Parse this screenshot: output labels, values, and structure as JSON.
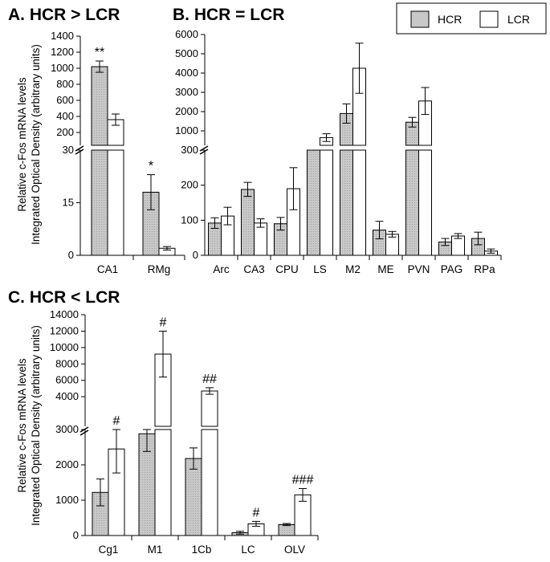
{
  "legend": {
    "hcr": "HCR",
    "lcr": "LCR"
  },
  "colors": {
    "hcr_fill": "#c8c8c8",
    "lcr_fill": "#ffffff",
    "axis": "#000000"
  },
  "chart_data": [
    {
      "panel": "A",
      "type": "bar",
      "title": "A. HCR > LCR",
      "ylabel": [
        "Relative c-Fos mRNA levels",
        "Integrated Optical Density (arbitrary units)"
      ],
      "categories": [
        "CA1",
        "RMg"
      ],
      "series": [
        {
          "name": "HCR",
          "values": [
            1020,
            18
          ],
          "errors": [
            70,
            5
          ]
        },
        {
          "name": "LCR",
          "values": [
            360,
            2
          ],
          "errors": [
            70,
            0.5
          ]
        }
      ],
      "significance": [
        {
          "category": "CA1",
          "label": "**"
        },
        {
          "category": "RMg",
          "label": "*"
        }
      ],
      "broken_axis": {
        "lower": {
          "range": [
            0,
            30
          ],
          "ticks": [
            "0",
            "15",
            "30"
          ]
        },
        "upper": {
          "range": [
            0,
            1400
          ],
          "ticks": [
            "200",
            "400",
            "600",
            "800",
            "1000",
            "1200",
            "1400"
          ]
        }
      }
    },
    {
      "panel": "B",
      "type": "bar",
      "title": "B. HCR = LCR",
      "categories": [
        "Arc",
        "CA3",
        "CPU",
        "LS",
        "M2",
        "ME",
        "PVN",
        "PAG",
        "RPa"
      ],
      "series": [
        {
          "name": "HCR",
          "values": [
            92,
            188,
            90,
            300,
            1900,
            72,
            1450,
            38,
            48
          ],
          "errors": [
            15,
            20,
            18,
            0,
            500,
            25,
            250,
            10,
            18
          ]
        },
        {
          "name": "LCR",
          "values": [
            112,
            92,
            190,
            650,
            4250,
            60,
            2550,
            55,
            12
          ],
          "errors": [
            25,
            12,
            60,
            200,
            1300,
            8,
            700,
            7,
            6
          ]
        }
      ],
      "broken_axis": {
        "lower": {
          "range": [
            0,
            300
          ],
          "ticks": [
            "0",
            "100",
            "200",
            "300"
          ]
        },
        "upper": {
          "range": [
            0,
            6000
          ],
          "ticks": [
            "1000",
            "2000",
            "3000",
            "4000",
            "5000",
            "6000"
          ]
        }
      }
    },
    {
      "panel": "C",
      "type": "bar",
      "title": "C. HCR < LCR",
      "ylabel": [
        "Relative c-Fos mRNA levels",
        "Integrated Optical Density (arbitrary units)"
      ],
      "categories": [
        "Cg1",
        "M1",
        "1Cb",
        "LC",
        "OLV"
      ],
      "series": [
        {
          "name": "HCR",
          "values": [
            1220,
            2880,
            2180,
            80,
            310
          ],
          "errors": [
            380,
            500,
            300,
            40,
            30
          ]
        },
        {
          "name": "LCR",
          "values": [
            2450,
            9200,
            4700,
            330,
            1150
          ],
          "errors": [
            680,
            2800,
            400,
            70,
            180
          ]
        }
      ],
      "significance": [
        {
          "category": "Cg1",
          "label": "#"
        },
        {
          "category": "M1",
          "label": "#"
        },
        {
          "category": "1Cb",
          "label": "##"
        },
        {
          "category": "LC",
          "label": "#"
        },
        {
          "category": "OLV",
          "label": "###"
        }
      ],
      "broken_axis": {
        "lower": {
          "range": [
            0,
            3000
          ],
          "ticks": [
            "0",
            "1000",
            "2000",
            "3000"
          ]
        },
        "upper": {
          "range": [
            0,
            14000
          ],
          "ticks": [
            "4000",
            "6000",
            "8000",
            "10000",
            "12000",
            "14000"
          ]
        }
      }
    }
  ]
}
